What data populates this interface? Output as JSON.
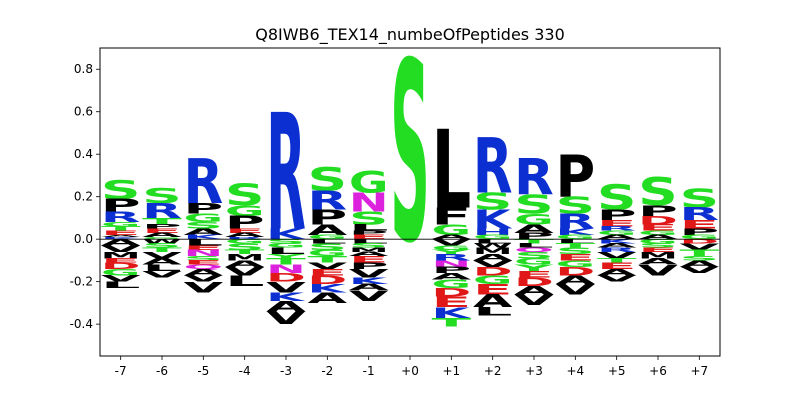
{
  "colors": {
    "S": "#22dd22",
    "G": "#22dd22",
    "T": "#22dd22",
    "Y": "#22dd22",
    "R": "#0b2fd1",
    "K": "#0b2fd1",
    "H": "#0b2fd1",
    "D": "#e01818",
    "E": "#e01818",
    "N": "#dd22dd",
    "Q": "#dd22dd",
    "P": "#000000",
    "A": "#000000",
    "L": "#000000",
    "V": "#000000",
    "I": "#000000",
    "M": "#000000",
    "F": "#000000",
    "W": "#000000",
    "C": "#000000"
  },
  "chart_data": {
    "type": "sequence-logo",
    "title": "Q8IWB6_TEX14_numbeOfPeptides 330",
    "xlabel": "",
    "ylabel": "",
    "ylim": [
      -0.55,
      0.9
    ],
    "yticks": [
      "-0.4",
      "-0.2",
      "0.0",
      "0.2",
      "0.4",
      "0.6",
      "0.8"
    ],
    "ytick_values": [
      -0.4,
      -0.2,
      0.0,
      0.2,
      0.4,
      0.6,
      0.8
    ],
    "categories": [
      "-7",
      "-6",
      "-5",
      "-4",
      "-3",
      "-2",
      "-1",
      "+0",
      "+1",
      "+2",
      "+3",
      "+4",
      "+5",
      "+6",
      "+7"
    ],
    "positions": [
      {
        "pos": "-7",
        "above": [
          [
            "S",
            0.09
          ],
          [
            "P",
            0.06
          ],
          [
            "R",
            0.05
          ],
          [
            "G",
            0.02
          ],
          [
            "T",
            0.02
          ],
          [
            "E",
            0.02
          ],
          [
            "A",
            0.01
          ],
          [
            "K",
            0.01
          ]
        ],
        "below": [
          [
            "A",
            0.03
          ],
          [
            "V",
            0.03
          ],
          [
            "M",
            0.03
          ],
          [
            "E",
            0.02
          ],
          [
            "D",
            0.03
          ],
          [
            "G",
            0.03
          ],
          [
            "V",
            0.03
          ],
          [
            "L",
            0.03
          ]
        ]
      },
      {
        "pos": "-6",
        "above": [
          [
            "S",
            0.07
          ],
          [
            "R",
            0.07
          ],
          [
            "T",
            0.03
          ],
          [
            "P",
            0.02
          ],
          [
            "E",
            0.02
          ],
          [
            "A",
            0.02
          ],
          [
            "G",
            0.01
          ]
        ],
        "below": [
          [
            "W",
            0.02
          ],
          [
            "S",
            0.02
          ],
          [
            "T",
            0.02
          ],
          [
            "V",
            0.03
          ],
          [
            "A",
            0.03
          ],
          [
            "L",
            0.03
          ],
          [
            "V",
            0.03
          ]
        ]
      },
      {
        "pos": "-5",
        "above": [
          [
            "R",
            0.21
          ],
          [
            "P",
            0.05
          ],
          [
            "G",
            0.04
          ],
          [
            "S",
            0.03
          ],
          [
            "A",
            0.03
          ],
          [
            "K",
            0.02
          ]
        ],
        "below": [
          [
            "L",
            0.03
          ],
          [
            "E",
            0.02
          ],
          [
            "N",
            0.03
          ],
          [
            "S",
            0.02
          ],
          [
            "E",
            0.02
          ],
          [
            "Q",
            0.02
          ],
          [
            "A",
            0.03
          ],
          [
            "V",
            0.03
          ],
          [
            "V",
            0.05
          ]
        ]
      },
      {
        "pos": "-4",
        "above": [
          [
            "S",
            0.1
          ],
          [
            "G",
            0.05
          ],
          [
            "P",
            0.06
          ],
          [
            "E",
            0.02
          ],
          [
            "A",
            0.02
          ],
          [
            "R",
            0.01
          ]
        ],
        "below": [
          [
            "G",
            0.02
          ],
          [
            "S",
            0.03
          ],
          [
            "T",
            0.02
          ],
          [
            "M",
            0.03
          ],
          [
            "A",
            0.03
          ],
          [
            "V",
            0.04
          ],
          [
            "L",
            0.05
          ]
        ]
      },
      {
        "pos": "-3",
        "above": [
          [
            "R",
            0.55
          ],
          [
            "K",
            0.05
          ]
        ],
        "below": [
          [
            "S",
            0.02
          ],
          [
            "G",
            0.02
          ],
          [
            "L",
            0.03
          ],
          [
            "Y",
            0.02
          ],
          [
            "T",
            0.03
          ],
          [
            "N",
            0.04
          ],
          [
            "D",
            0.04
          ],
          [
            "V",
            0.05
          ],
          [
            "K",
            0.04
          ],
          [
            "A",
            0.05
          ],
          [
            "V",
            0.06
          ]
        ]
      },
      {
        "pos": "-2",
        "above": [
          [
            "S",
            0.11
          ],
          [
            "R",
            0.09
          ],
          [
            "P",
            0.07
          ],
          [
            "A",
            0.05
          ],
          [
            "G",
            0.02
          ]
        ],
        "below": [
          [
            "L",
            0.02
          ],
          [
            "S",
            0.03
          ],
          [
            "G",
            0.03
          ],
          [
            "T",
            0.03
          ],
          [
            "V",
            0.03
          ],
          [
            "E",
            0.03
          ],
          [
            "D",
            0.04
          ],
          [
            "K",
            0.04
          ],
          [
            "A",
            0.05
          ]
        ]
      },
      {
        "pos": "-1",
        "above": [
          [
            "G",
            0.1
          ],
          [
            "N",
            0.09
          ],
          [
            "S",
            0.06
          ],
          [
            "L",
            0.03
          ],
          [
            "P",
            0.02
          ],
          [
            "E",
            0.02
          ]
        ],
        "below": [
          [
            "L",
            0.02
          ],
          [
            "S",
            0.02
          ],
          [
            "M",
            0.02
          ],
          [
            "A",
            0.02
          ],
          [
            "E",
            0.03
          ],
          [
            "P",
            0.03
          ],
          [
            "V",
            0.04
          ],
          [
            "K",
            0.03
          ],
          [
            "A",
            0.03
          ],
          [
            "V",
            0.05
          ]
        ]
      },
      {
        "pos": "+0",
        "above": [
          [
            "S",
            0.85
          ]
        ],
        "below": []
      },
      {
        "pos": "+1",
        "above": [
          [
            "L",
            0.37
          ],
          [
            "F",
            0.08
          ],
          [
            "G",
            0.05
          ],
          [
            "A",
            0.02
          ]
        ],
        "below": [
          [
            "V",
            0.03
          ],
          [
            "G",
            0.02
          ],
          [
            "Y",
            0.02
          ],
          [
            "R",
            0.03
          ],
          [
            "N",
            0.03
          ],
          [
            "P",
            0.03
          ],
          [
            "A",
            0.03
          ],
          [
            "G",
            0.04
          ],
          [
            "D",
            0.04
          ],
          [
            "E",
            0.05
          ],
          [
            "K",
            0.05
          ],
          [
            "T",
            0.04
          ]
        ]
      },
      {
        "pos": "+2",
        "above": [
          [
            "R",
            0.26
          ],
          [
            "S",
            0.08
          ],
          [
            "K",
            0.09
          ],
          [
            "H",
            0.03
          ],
          [
            "G",
            0.02
          ]
        ],
        "below": [
          [
            "L",
            0.02
          ],
          [
            "W",
            0.02
          ],
          [
            "M",
            0.03
          ],
          [
            "A",
            0.03
          ],
          [
            "V",
            0.03
          ],
          [
            "D",
            0.04
          ],
          [
            "G",
            0.04
          ],
          [
            "E",
            0.05
          ],
          [
            "A",
            0.06
          ],
          [
            "L",
            0.04
          ]
        ]
      },
      {
        "pos": "+3",
        "above": [
          [
            "R",
            0.17
          ],
          [
            "S",
            0.09
          ],
          [
            "G",
            0.05
          ],
          [
            "A",
            0.04
          ],
          [
            "P",
            0.03
          ]
        ],
        "below": [
          [
            "T",
            0.02
          ],
          [
            "L",
            0.02
          ],
          [
            "Q",
            0.02
          ],
          [
            "S",
            0.03
          ],
          [
            "G",
            0.03
          ],
          [
            "Y",
            0.03
          ],
          [
            "E",
            0.03
          ],
          [
            "D",
            0.04
          ],
          [
            "A",
            0.04
          ],
          [
            "V",
            0.05
          ]
        ]
      },
      {
        "pos": "+4",
        "above": [
          [
            "P",
            0.2
          ],
          [
            "S",
            0.08
          ],
          [
            "R",
            0.07
          ],
          [
            "K",
            0.03
          ],
          [
            "G",
            0.02
          ]
        ],
        "below": [
          [
            "L",
            0.02
          ],
          [
            "T",
            0.02
          ],
          [
            "S",
            0.03
          ],
          [
            "E",
            0.03
          ],
          [
            "G",
            0.03
          ],
          [
            "D",
            0.04
          ],
          [
            "A",
            0.04
          ],
          [
            "V",
            0.05
          ]
        ]
      },
      {
        "pos": "+5",
        "above": [
          [
            "S",
            0.12
          ],
          [
            "P",
            0.05
          ],
          [
            "E",
            0.03
          ],
          [
            "R",
            0.02
          ],
          [
            "G",
            0.02
          ],
          [
            "A",
            0.02
          ]
        ],
        "below": [
          [
            "K",
            0.02
          ],
          [
            "A",
            0.02
          ],
          [
            "R",
            0.02
          ],
          [
            "V",
            0.03
          ],
          [
            "T",
            0.02
          ],
          [
            "E",
            0.03
          ],
          [
            "A",
            0.03
          ],
          [
            "V",
            0.03
          ]
        ]
      },
      {
        "pos": "+6",
        "above": [
          [
            "S",
            0.13
          ],
          [
            "P",
            0.05
          ],
          [
            "D",
            0.04
          ],
          [
            "E",
            0.03
          ],
          [
            "G",
            0.02
          ],
          [
            "A",
            0.02
          ]
        ],
        "below": [
          [
            "G",
            0.02
          ],
          [
            "S",
            0.02
          ],
          [
            "E",
            0.02
          ],
          [
            "M",
            0.03
          ],
          [
            "A",
            0.03
          ],
          [
            "V",
            0.05
          ]
        ]
      },
      {
        "pos": "+7",
        "above": [
          [
            "S",
            0.09
          ],
          [
            "R",
            0.06
          ],
          [
            "E",
            0.04
          ],
          [
            "P",
            0.03
          ],
          [
            "G",
            0.02
          ]
        ],
        "below": [
          [
            "D",
            0.02
          ],
          [
            "V",
            0.03
          ],
          [
            "T",
            0.03
          ],
          [
            "S",
            0.02
          ],
          [
            "A",
            0.03
          ],
          [
            "V",
            0.03
          ]
        ]
      }
    ]
  }
}
